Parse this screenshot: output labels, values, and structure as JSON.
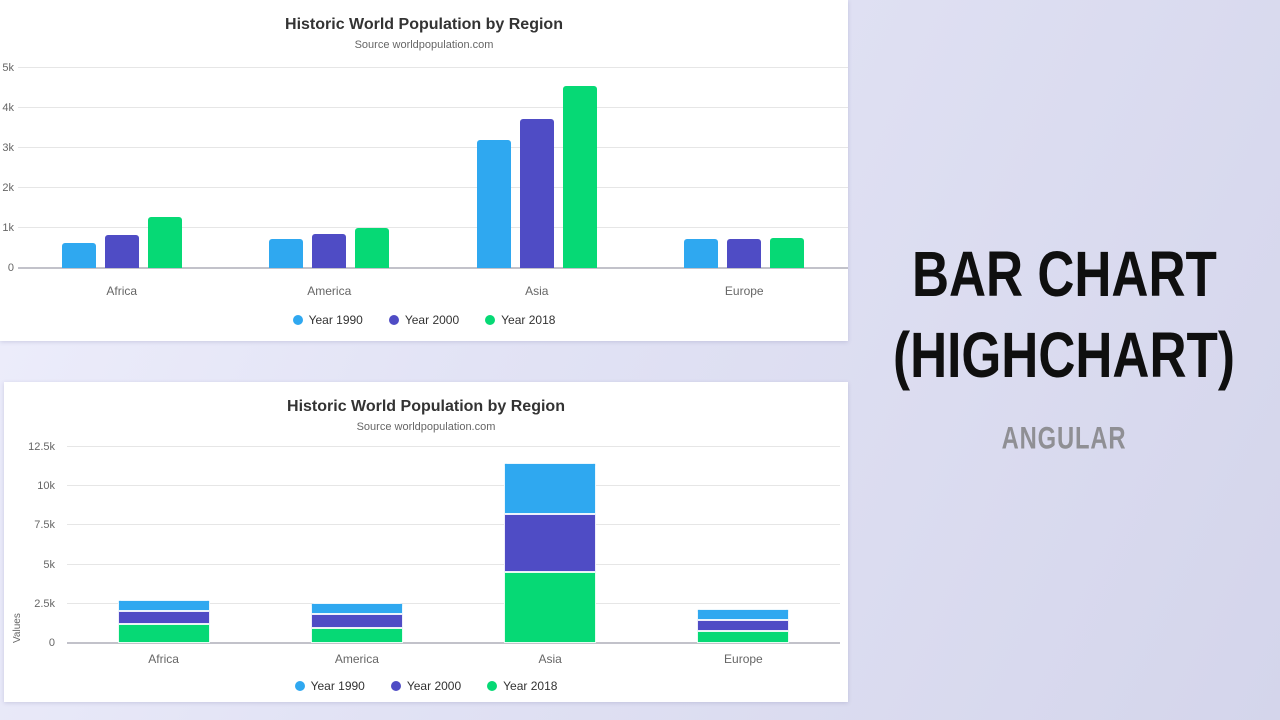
{
  "right_panel": {
    "title_line1": "BAR CHART",
    "title_line2": "(HIGHCHART)",
    "subtitle": "ANGULAR",
    "title_color": "#0f0f0f",
    "subtitle_color": "#8f8f94",
    "background_color": "#dadbef"
  },
  "palette": {
    "year_1990": "#2fa8f0",
    "year_2000": "#4f4cc5",
    "year_2018": "#06d975",
    "title_text": "#333333",
    "subtitle_text": "#666666",
    "axis_label_text": "#666666",
    "gridline": "#e6e6e6",
    "axis_line": "#c2c2ca",
    "card_background": "#ffffff"
  },
  "chart_data": [
    {
      "type": "bar",
      "variant": "grouped",
      "title": "Historic World Population by Region",
      "subtitle": "Source worldpopulation.com",
      "categories": [
        "Africa",
        "America",
        "Asia",
        "Europe"
      ],
      "series": [
        {
          "name": "Year 1990",
          "color": "#2fa8f0",
          "values": [
            632,
            727,
            3202,
            721
          ]
        },
        {
          "name": "Year 2000",
          "color": "#4f4cc5",
          "values": [
            814,
            841,
            3714,
            726
          ]
        },
        {
          "name": "Year 2018",
          "color": "#06d975",
          "values": [
            1276,
            1007,
            4561,
            746
          ]
        }
      ],
      "xlabel": "",
      "ylabel": "",
      "ylim": [
        0,
        5000
      ],
      "yticks": [
        "0",
        "1k",
        "2k",
        "3k",
        "4k",
        "5k"
      ],
      "grid": true,
      "legend_position": "bottom"
    },
    {
      "type": "bar",
      "variant": "stacked",
      "title": "Historic World Population by Region",
      "subtitle": "Source worldpopulation.com",
      "categories": [
        "Africa",
        "America",
        "Asia",
        "Europe"
      ],
      "series": [
        {
          "name": "Year 1990",
          "color": "#2fa8f0",
          "values": [
            632,
            727,
            3202,
            721
          ]
        },
        {
          "name": "Year 2000",
          "color": "#4f4cc5",
          "values": [
            814,
            841,
            3714,
            726
          ]
        },
        {
          "name": "Year 2018",
          "color": "#06d975",
          "values": [
            1276,
            1007,
            4561,
            746
          ]
        }
      ],
      "stack_totals": [
        2722,
        2575,
        11477,
        2193
      ],
      "xlabel": "",
      "ylabel": "Values",
      "ylim": [
        0,
        12500
      ],
      "yticks": [
        "0",
        "2.5k",
        "5k",
        "7.5k",
        "10k",
        "12.5k"
      ],
      "grid": true,
      "legend_position": "bottom"
    }
  ]
}
